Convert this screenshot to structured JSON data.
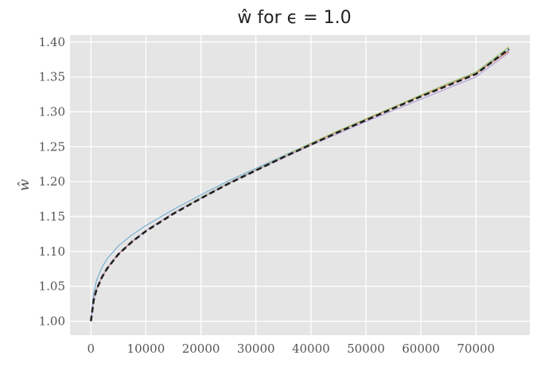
{
  "chart_data": {
    "type": "line",
    "title": "ŵ for ϵ = 1.0",
    "xlabel": "",
    "ylabel": "ŵ",
    "xlim": [
      -3800,
      79800
    ],
    "ylim": [
      0.98,
      1.41
    ],
    "grid": true,
    "x_ticks": [
      0,
      10000,
      20000,
      30000,
      40000,
      50000,
      60000,
      70000
    ],
    "y_ticks": [
      1.0,
      1.05,
      1.1,
      1.15,
      1.2,
      1.25,
      1.3,
      1.35,
      1.4
    ],
    "x_tick_labels": [
      "0",
      "10000",
      "20000",
      "30000",
      "40000",
      "50000",
      "60000",
      "70000"
    ],
    "y_tick_labels": [
      "1.00",
      "1.05",
      "1.10",
      "1.15",
      "1.20",
      "1.25",
      "1.30",
      "1.35",
      "1.40"
    ],
    "x": [
      0,
      500,
      1000,
      2000,
      3000,
      5000,
      7500,
      10000,
      15000,
      20000,
      25000,
      30000,
      35000,
      40000,
      45000,
      50000,
      55000,
      60000,
      65000,
      70000,
      76000
    ],
    "series": [
      {
        "color": "#7fb3d5",
        "values": [
          1.0,
          1.04,
          1.058,
          1.077,
          1.09,
          1.108,
          1.124,
          1.137,
          1.16,
          1.181,
          1.201,
          1.219,
          1.237,
          1.255,
          1.272,
          1.289,
          1.306,
          1.323,
          1.34,
          1.356,
          1.389
        ]
      },
      {
        "color": "#e8845c",
        "values": [
          1.0,
          1.03,
          1.045,
          1.063,
          1.076,
          1.096,
          1.114,
          1.13,
          1.155,
          1.177,
          1.198,
          1.217,
          1.236,
          1.254,
          1.272,
          1.289,
          1.306,
          1.323,
          1.339,
          1.355,
          1.387
        ]
      },
      {
        "color": "#a6c97a",
        "values": [
          1.0,
          1.031,
          1.046,
          1.064,
          1.077,
          1.097,
          1.115,
          1.13,
          1.155,
          1.177,
          1.198,
          1.217,
          1.236,
          1.255,
          1.273,
          1.29,
          1.307,
          1.324,
          1.341,
          1.357,
          1.393
        ]
      },
      {
        "color": "#b8a3d9",
        "values": [
          1.0,
          1.031,
          1.046,
          1.064,
          1.077,
          1.097,
          1.115,
          1.13,
          1.155,
          1.176,
          1.197,
          1.216,
          1.234,
          1.252,
          1.269,
          1.286,
          1.302,
          1.318,
          1.334,
          1.35,
          1.385
        ]
      },
      {
        "color": "#222222",
        "dashed": true,
        "values": [
          1.0,
          1.03,
          1.045,
          1.063,
          1.076,
          1.096,
          1.114,
          1.129,
          1.154,
          1.176,
          1.197,
          1.216,
          1.235,
          1.253,
          1.271,
          1.288,
          1.305,
          1.322,
          1.338,
          1.354,
          1.39
        ]
      }
    ]
  }
}
